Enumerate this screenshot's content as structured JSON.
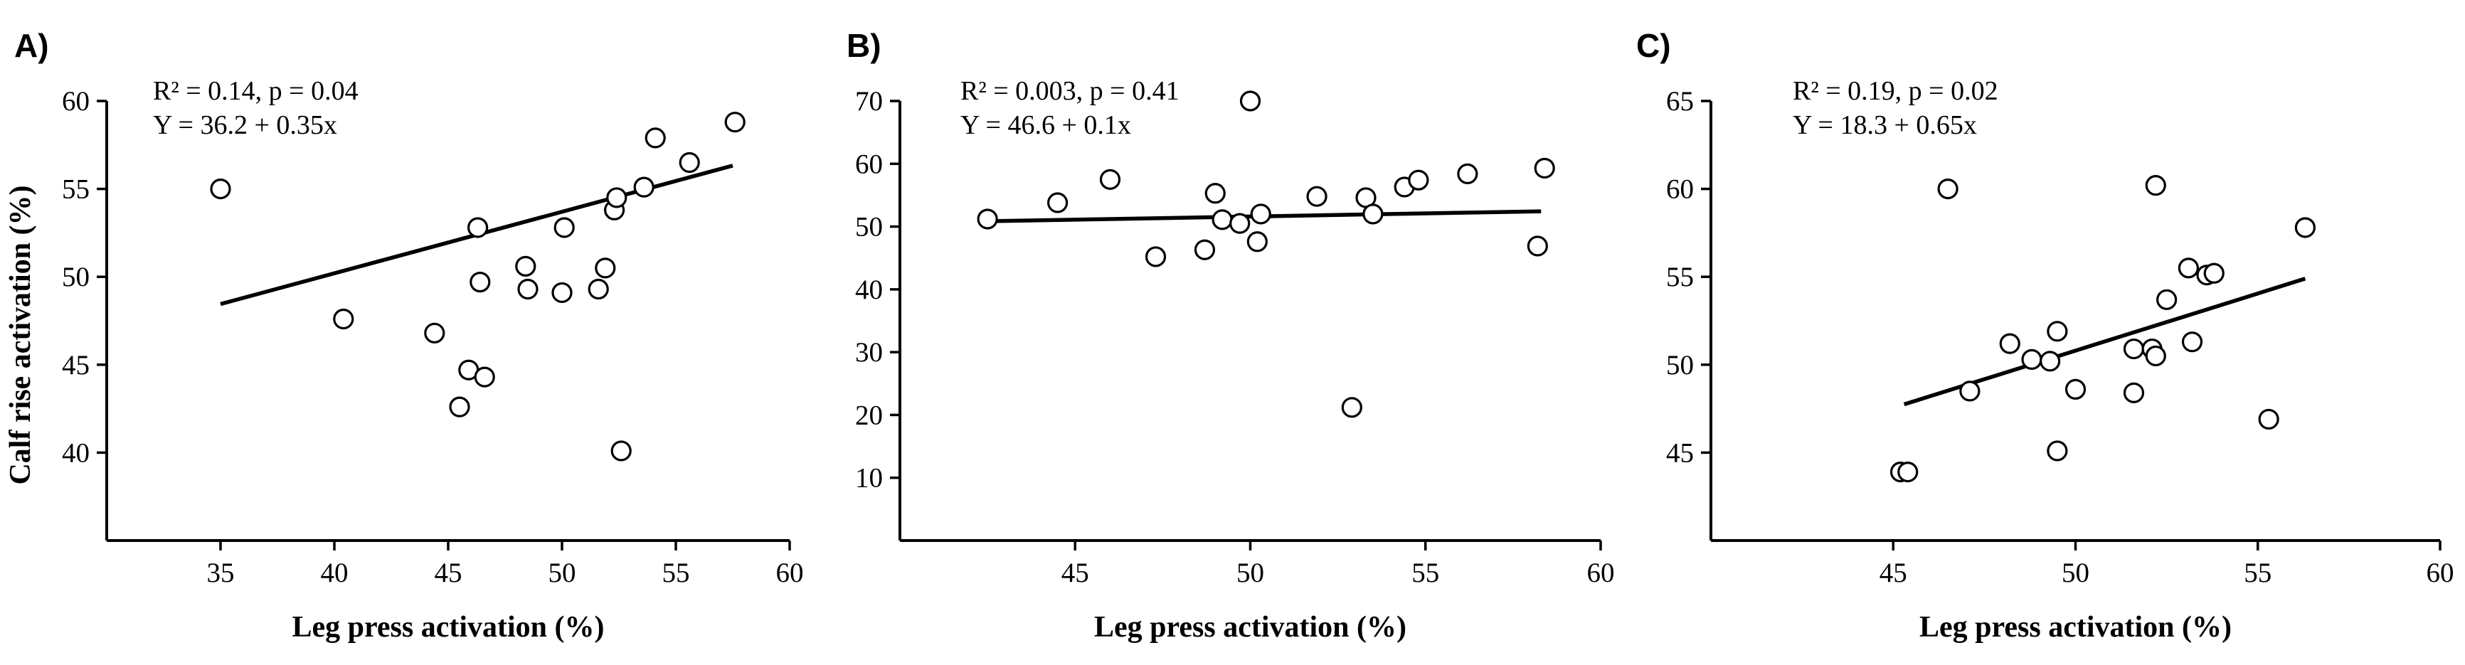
{
  "chart_data": [
    {
      "type": "scatter",
      "panel_label": "A)",
      "stats_line1": "R² = 0.14, p = 0.04",
      "stats_line2": "Y = 36.2 + 0.35x",
      "xlabel": "Leg press activation (%)",
      "ylabel": "Calf rise activation (%)",
      "xlim": [
        30,
        60
      ],
      "ylim": [
        35,
        60
      ],
      "xticks": [
        35,
        40,
        45,
        50,
        55,
        60
      ],
      "yticks": [
        40,
        45,
        50,
        55,
        60
      ],
      "fit": {
        "intercept": 36.2,
        "slope": 0.35,
        "x_range": [
          35,
          57.5
        ]
      },
      "points": [
        [
          35.0,
          55.0
        ],
        [
          40.4,
          47.6
        ],
        [
          44.4,
          46.8
        ],
        [
          45.5,
          42.6
        ],
        [
          45.9,
          44.7
        ],
        [
          46.3,
          52.8
        ],
        [
          46.4,
          49.7
        ],
        [
          46.6,
          44.3
        ],
        [
          48.4,
          50.6
        ],
        [
          48.5,
          49.3
        ],
        [
          50.0,
          49.1
        ],
        [
          50.1,
          52.8
        ],
        [
          51.6,
          49.3
        ],
        [
          51.9,
          50.5
        ],
        [
          52.3,
          53.8
        ],
        [
          52.4,
          54.5
        ],
        [
          52.6,
          40.1
        ],
        [
          53.6,
          55.1
        ],
        [
          54.1,
          57.9
        ],
        [
          55.6,
          56.5
        ],
        [
          57.6,
          58.8
        ]
      ]
    },
    {
      "type": "scatter",
      "panel_label": "B)",
      "stats_line1": "R² = 0.003, p = 0.41",
      "stats_line2": "Y = 46.6 + 0.1x",
      "xlabel": "Leg press activation (%)",
      "ylabel": "",
      "xlim": [
        40,
        60
      ],
      "ylim": [
        0,
        70
      ],
      "xticks": [
        45,
        50,
        55,
        60
      ],
      "yticks": [
        10,
        20,
        30,
        40,
        50,
        60,
        70
      ],
      "fit": {
        "intercept": 46.6,
        "slope": 0.1,
        "x_range": [
          42.5,
          58.3
        ]
      },
      "points": [
        [
          42.5,
          51.2
        ],
        [
          44.5,
          53.8
        ],
        [
          46.0,
          57.5
        ],
        [
          47.3,
          45.2
        ],
        [
          48.7,
          46.3
        ],
        [
          49.0,
          55.3
        ],
        [
          49.2,
          51.1
        ],
        [
          49.7,
          50.5
        ],
        [
          50.0,
          70.0
        ],
        [
          50.2,
          47.6
        ],
        [
          50.3,
          52.0
        ],
        [
          51.9,
          54.8
        ],
        [
          52.9,
          21.2
        ],
        [
          53.3,
          54.6
        ],
        [
          53.5,
          52.0
        ],
        [
          54.4,
          56.3
        ],
        [
          54.8,
          57.4
        ],
        [
          56.2,
          58.4
        ],
        [
          58.2,
          46.9
        ],
        [
          58.4,
          59.3
        ]
      ]
    },
    {
      "type": "scatter",
      "panel_label": "C)",
      "stats_line1": "R² = 0.19, p = 0.02",
      "stats_line2": "Y = 18.3 + 0.65x",
      "xlabel": "Leg press activation (%)",
      "ylabel": "",
      "xlim": [
        40,
        60
      ],
      "ylim": [
        40,
        65
      ],
      "xticks": [
        45,
        50,
        55,
        60
      ],
      "yticks": [
        45,
        50,
        55,
        60,
        65
      ],
      "fit": {
        "intercept": 18.3,
        "slope": 0.65,
        "x_range": [
          45.3,
          56.3
        ]
      },
      "points": [
        [
          45.2,
          43.9
        ],
        [
          45.4,
          43.9
        ],
        [
          46.5,
          60.0
        ],
        [
          47.1,
          48.5
        ],
        [
          48.2,
          51.2
        ],
        [
          48.8,
          50.3
        ],
        [
          49.3,
          50.2
        ],
        [
          49.5,
          51.9
        ],
        [
          49.5,
          45.1
        ],
        [
          50.0,
          48.6
        ],
        [
          51.6,
          50.9
        ],
        [
          51.6,
          48.4
        ],
        [
          52.1,
          50.9
        ],
        [
          52.2,
          50.5
        ],
        [
          52.2,
          60.2
        ],
        [
          52.5,
          53.7
        ],
        [
          53.1,
          55.5
        ],
        [
          53.2,
          51.3
        ],
        [
          53.6,
          55.1
        ],
        [
          53.8,
          55.2
        ],
        [
          55.3,
          46.9
        ],
        [
          56.3,
          57.8
        ]
      ]
    }
  ]
}
